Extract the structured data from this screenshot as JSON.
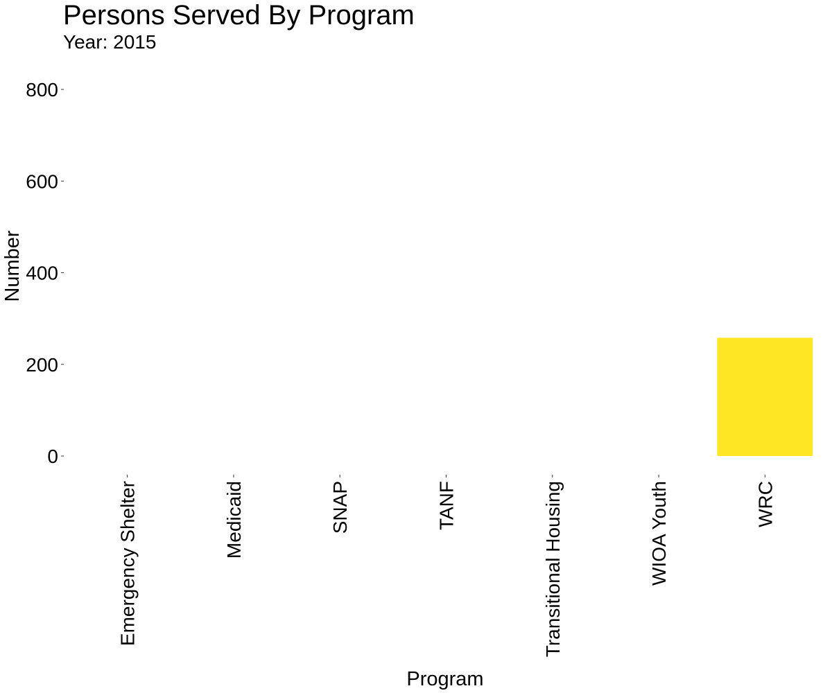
{
  "chart_data": {
    "type": "bar",
    "title": "Persons Served By Program",
    "subtitle": "Year: 2015",
    "xlabel": "Program",
    "ylabel": "Number",
    "categories": [
      "Emergency Shelter",
      "Medicaid",
      "SNAP",
      "TANF",
      "Transitional Housing",
      "WIOA Youth",
      "WRC"
    ],
    "values": [
      0,
      0,
      0,
      0,
      0,
      0,
      258
    ],
    "bar_colors": [
      "#FDE725",
      "#FDE725",
      "#FDE725",
      "#FDE725",
      "#FDE725",
      "#FDE725",
      "#FDE725"
    ],
    "ylim": [
      0,
      800
    ],
    "yticks": [
      0,
      200,
      400,
      600,
      800
    ],
    "ytick_labels": [
      "0",
      "200",
      "400",
      "600",
      "800"
    ],
    "grid": false,
    "legend": "none"
  }
}
